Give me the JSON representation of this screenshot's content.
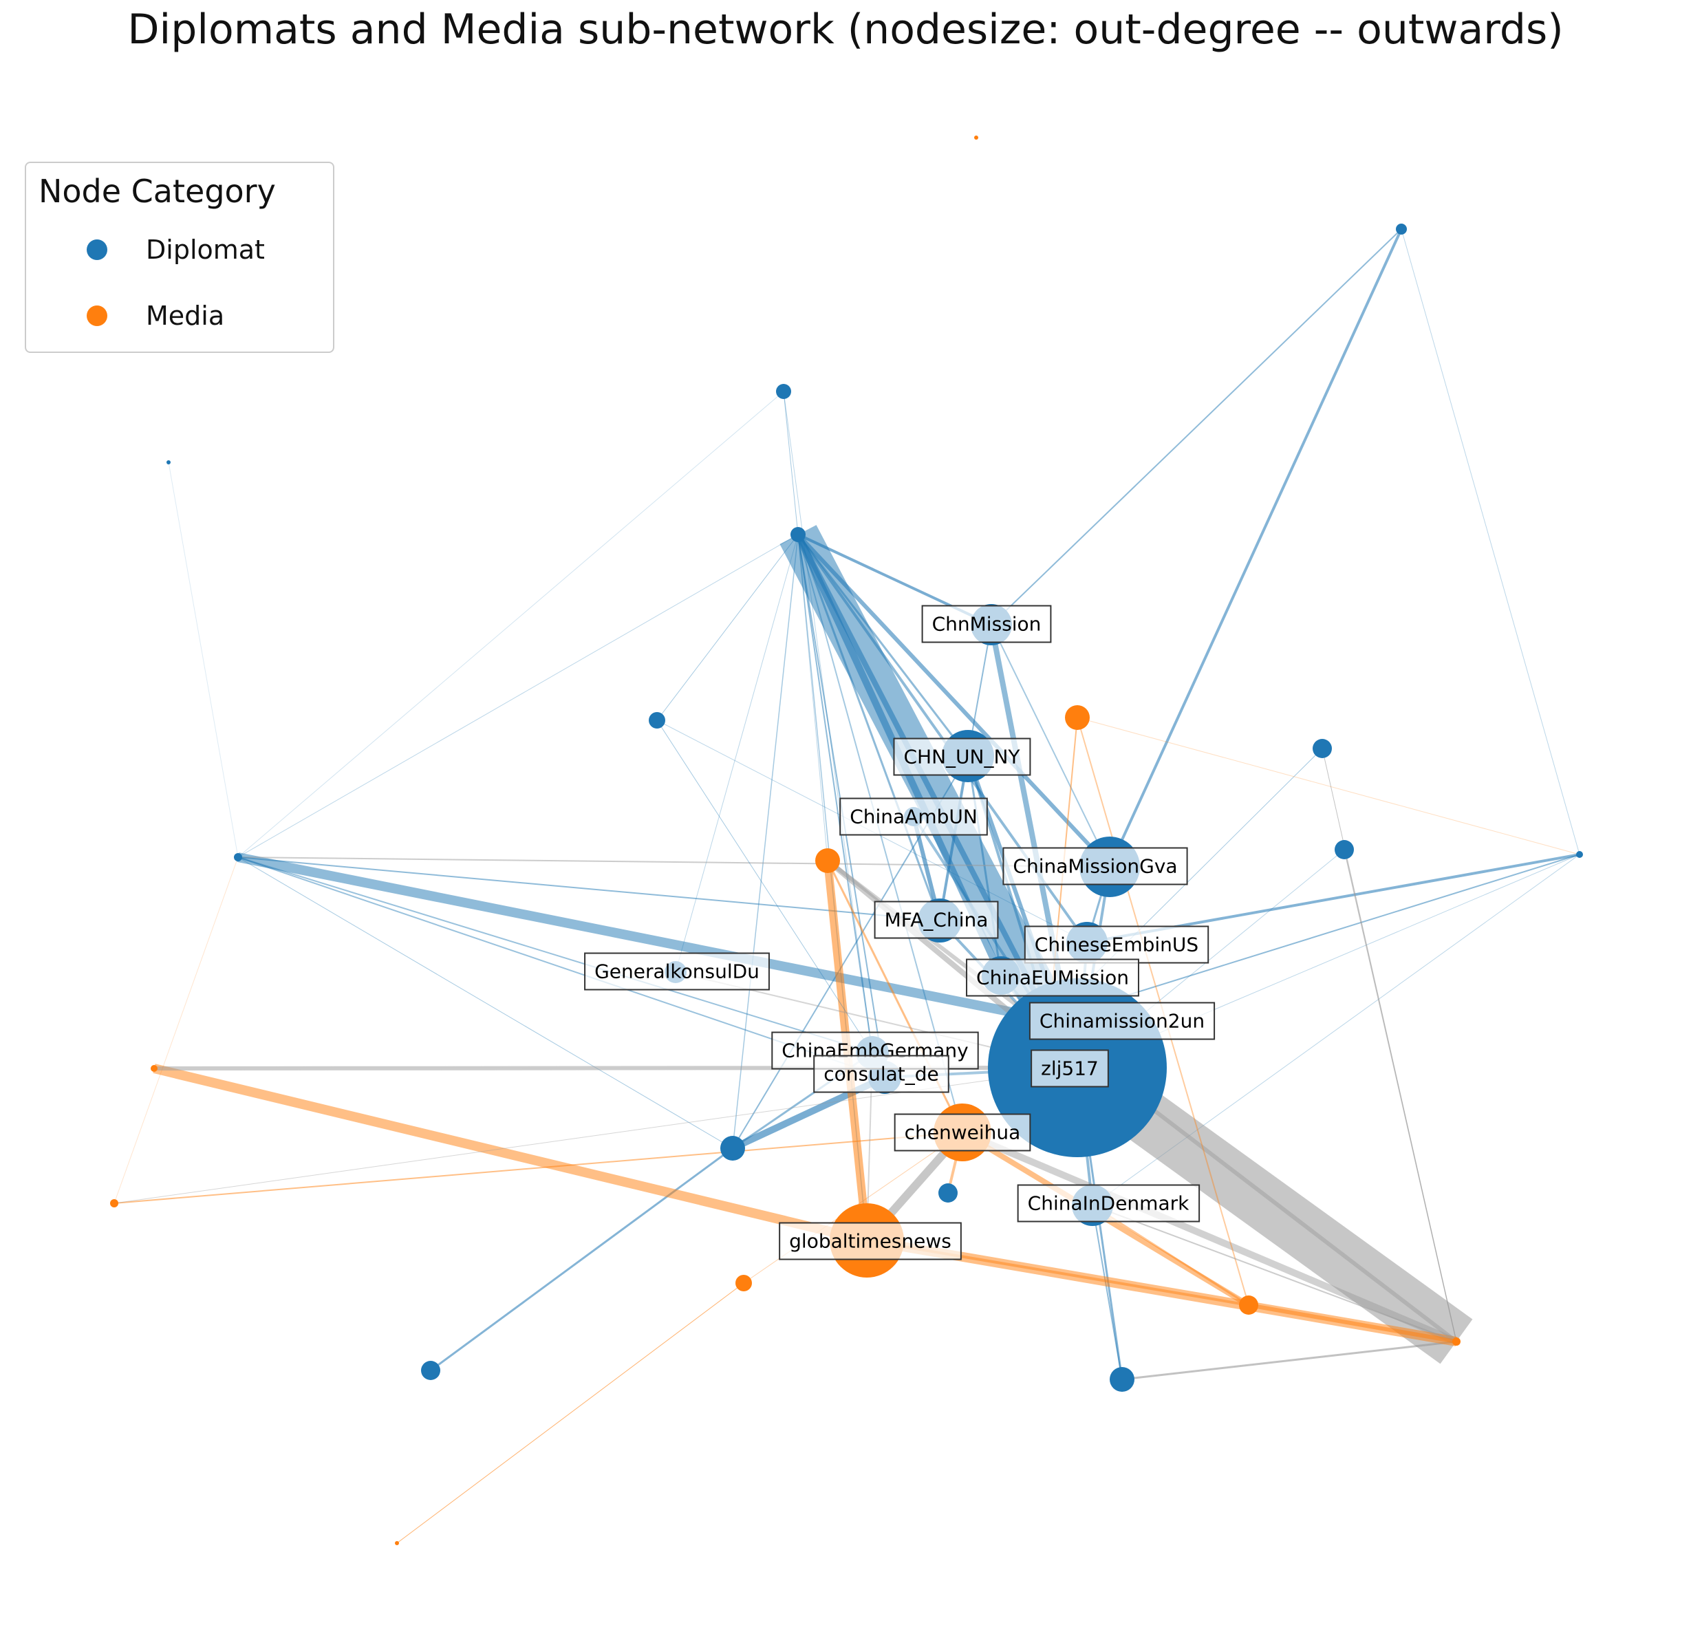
{
  "title": "Diplomats and Media sub-network (nodesize: out-degree -- outwards)",
  "legend": {
    "title": "Node Category",
    "items": [
      {
        "label": "Diplomat",
        "color": "#1f77b4"
      },
      {
        "label": "Media",
        "color": "#ff7f0e"
      }
    ]
  },
  "colors": {
    "diplomat": "#1f77b4",
    "media": "#ff7f0e",
    "mixed_edge": "#999999"
  },
  "labels": {
    "chnmission": "ChnMission",
    "chn_un_ny": "CHN_UN_NY",
    "chinaambun": "ChinaAmbUN",
    "chinamissiongva": "ChinaMissionGva",
    "mfa_china": "MFA_China",
    "chineseembinus": "ChineseEmbinUS",
    "chinaeumission": "ChinaEUMission",
    "generalkonsuldu": "GeneralkonsulDu",
    "chinamission2un": "Chinamission2un",
    "chinaembgermany": "ChinaEmbGermany",
    "zlj517": "zlj517",
    "consulat_de": "consulat_de",
    "chenweihua": "chenweihua",
    "chinaindenmark": "ChinaInDenmark",
    "globaltimesnews": "globaltimesnews"
  }
}
